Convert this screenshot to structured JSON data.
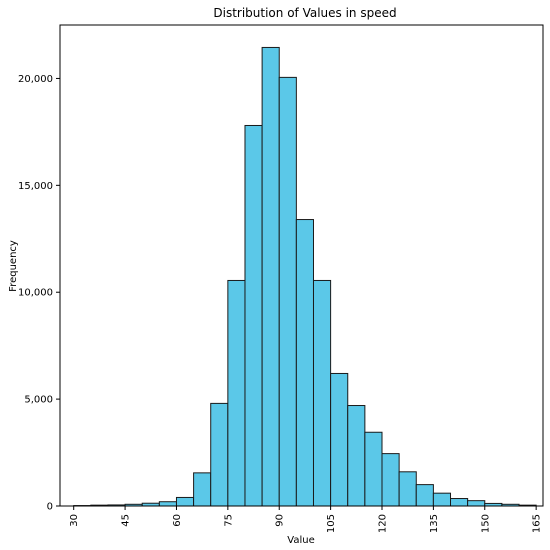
{
  "chart_data": {
    "type": "bar",
    "title": "Distribution of Values in speed",
    "xlabel": "Value",
    "ylabel": "Frequency",
    "bin_width": 5,
    "bins": [
      {
        "start": 30,
        "end": 35,
        "value": 20
      },
      {
        "start": 35,
        "end": 40,
        "value": 40
      },
      {
        "start": 40,
        "end": 45,
        "value": 50
      },
      {
        "start": 45,
        "end": 50,
        "value": 80
      },
      {
        "start": 50,
        "end": 55,
        "value": 130
      },
      {
        "start": 55,
        "end": 60,
        "value": 200
      },
      {
        "start": 60,
        "end": 65,
        "value": 400
      },
      {
        "start": 65,
        "end": 70,
        "value": 1550
      },
      {
        "start": 70,
        "end": 75,
        "value": 4800
      },
      {
        "start": 75,
        "end": 80,
        "value": 10550
      },
      {
        "start": 80,
        "end": 85,
        "value": 17800
      },
      {
        "start": 85,
        "end": 90,
        "value": 21450
      },
      {
        "start": 90,
        "end": 95,
        "value": 20050
      },
      {
        "start": 95,
        "end": 100,
        "value": 13400
      },
      {
        "start": 100,
        "end": 105,
        "value": 10550
      },
      {
        "start": 105,
        "end": 110,
        "value": 6200
      },
      {
        "start": 110,
        "end": 115,
        "value": 4700
      },
      {
        "start": 115,
        "end": 120,
        "value": 3450
      },
      {
        "start": 120,
        "end": 125,
        "value": 2450
      },
      {
        "start": 125,
        "end": 130,
        "value": 1600
      },
      {
        "start": 130,
        "end": 135,
        "value": 1000
      },
      {
        "start": 135,
        "end": 140,
        "value": 600
      },
      {
        "start": 140,
        "end": 145,
        "value": 350
      },
      {
        "start": 145,
        "end": 150,
        "value": 250
      },
      {
        "start": 150,
        "end": 155,
        "value": 120
      },
      {
        "start": 155,
        "end": 160,
        "value": 80
      },
      {
        "start": 160,
        "end": 165,
        "value": 40
      }
    ],
    "xlim": [
      26,
      167
    ],
    "ylim": [
      0,
      22500
    ],
    "x_ticks": [
      30,
      45,
      60,
      75,
      90,
      105,
      120,
      135,
      150,
      165
    ],
    "y_ticks": [
      {
        "value": 0,
        "label": "0"
      },
      {
        "value": 5000,
        "label": "5,000"
      },
      {
        "value": 10000,
        "label": "10,000"
      },
      {
        "value": 15000,
        "label": "15,000"
      },
      {
        "value": 20000,
        "label": "20,000"
      }
    ],
    "grid": false,
    "bar_color": "#5BC8E8",
    "edge_color": "#1a1a1a"
  }
}
